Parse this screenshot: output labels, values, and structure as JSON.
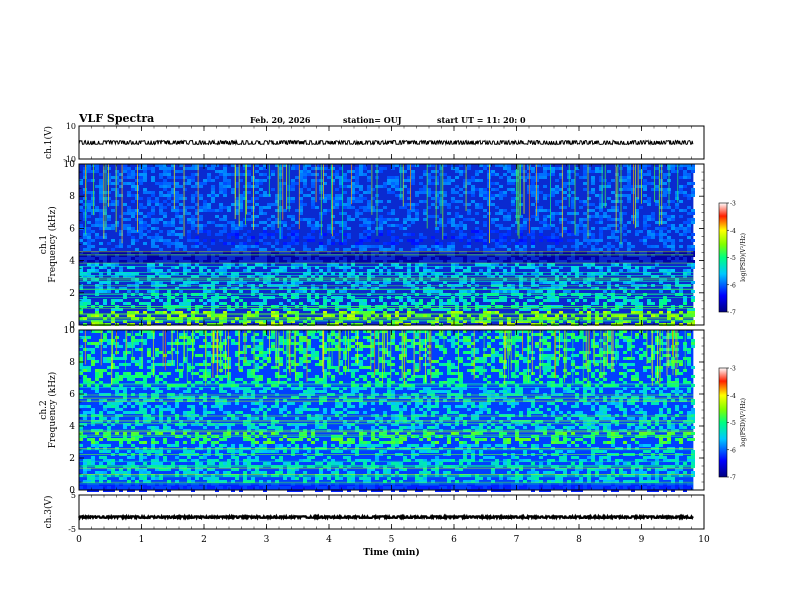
{
  "header": {
    "title": "VLF Spectra",
    "date": "Feb. 20, 2026",
    "station": "station= OUJ",
    "start": "start  UT  =   11: 20: 0"
  },
  "chart_data": [
    {
      "type": "line",
      "panel": "ch.1 waveform",
      "ylabel": "ch.1(V)",
      "ylim": [
        -10,
        10
      ],
      "yticks": [
        {
          "v": 10,
          "label": "10"
        },
        {
          "v": -10,
          "label": "-10"
        }
      ],
      "signal_level": 0,
      "noise_amplitude": 1.2,
      "color": "#000000"
    },
    {
      "type": "heatmap",
      "panel": "ch.1 spectrogram",
      "ylabel": "ch.1 Frequency (kHz)",
      "ylim": [
        0,
        10
      ],
      "yticks": [
        0,
        2,
        4,
        6,
        8,
        10
      ],
      "x_range_min": [
        0,
        9.83
      ],
      "colorbar": {
        "min": -7,
        "max": -3,
        "ticks": [
          -3,
          -4,
          -5,
          -6,
          -7
        ],
        "label": "log(PSD)(V²/Hz)"
      }
    },
    {
      "type": "heatmap",
      "panel": "ch.2 spectrogram",
      "ylabel": "ch.2 Frequency (kHz)",
      "ylim": [
        0,
        10
      ],
      "yticks": [
        0,
        2,
        4,
        6,
        8,
        10
      ],
      "x_range_min": [
        0,
        9.83
      ],
      "colorbar": {
        "min": -7,
        "max": -3,
        "ticks": [
          -3,
          -4,
          -5,
          -6,
          -7
        ],
        "label": "log(PSD)(V²/Hz)"
      }
    },
    {
      "type": "line",
      "panel": "ch.3 waveform",
      "ylabel": "ch.3(V)",
      "ylim": [
        -5,
        5
      ],
      "yticks": [
        {
          "v": 5,
          "label": "5"
        },
        {
          "v": -5,
          "label": "-5"
        }
      ],
      "signal_level": -1.5,
      "noise_amplitude": 0.25,
      "color": "#000000"
    }
  ],
  "x_axis": {
    "xlabel": "Time (min)",
    "xlim": [
      0,
      10
    ],
    "ticks": [
      0,
      1,
      2,
      3,
      4,
      5,
      6,
      7,
      8,
      9,
      10
    ]
  }
}
